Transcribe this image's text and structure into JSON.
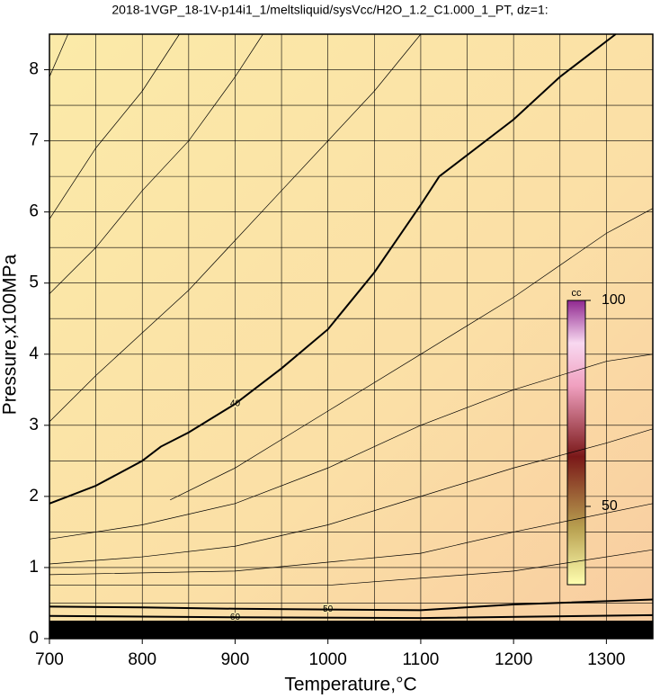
{
  "chart_data": {
    "type": "contour",
    "title": "2018-1VGP_18-1V-p14i1_1/meltsliquid/sysVcc/H2O_1.2_C1.000_1_PT, dz=1:",
    "x_label": "Temperature,°C",
    "y_label": "Pressure,x100MPa",
    "xlim": [
      700,
      1350
    ],
    "ylim": [
      0,
      8.5
    ],
    "xticks": [
      700,
      800,
      900,
      1000,
      1100,
      1200,
      1300
    ],
    "yticks": [
      0,
      1,
      2,
      3,
      4,
      5,
      6,
      7,
      8
    ],
    "xgrid": [
      700,
      750,
      800,
      850,
      900,
      950,
      1000,
      1050,
      1100,
      1150,
      1200,
      1250,
      1300,
      1350
    ],
    "ygrid": [
      0,
      0.5,
      1,
      1.5,
      2,
      2.5,
      3,
      3.5,
      4,
      4.5,
      5,
      5.5,
      6,
      6.5,
      7,
      7.5,
      8,
      8.5
    ],
    "contours": [
      {
        "level": 40,
        "labeled": true,
        "x": [
          700,
          720,
          750,
          800,
          820,
          850,
          900,
          950,
          1000,
          1050,
          1100,
          1120,
          1200,
          1250,
          1310
        ],
        "y": [
          1.9,
          2.0,
          2.15,
          2.5,
          2.7,
          2.9,
          3.3,
          3.8,
          4.35,
          5.15,
          6.1,
          6.5,
          7.3,
          7.9,
          8.5
        ]
      },
      {
        "level": 50,
        "labeled": true,
        "x": [
          700,
          800,
          900,
          1000,
          1100,
          1200,
          1350
        ],
        "y": [
          0.45,
          0.44,
          0.42,
          0.41,
          0.4,
          0.48,
          0.55
        ]
      },
      {
        "level": 60,
        "labeled": true,
        "x": [
          700,
          900,
          1100,
          1350
        ],
        "y": [
          0.32,
          0.3,
          0.29,
          0.33
        ]
      },
      {
        "level": 15,
        "labeled": false,
        "x": [
          700,
          720
        ],
        "y": [
          7.9,
          8.5
        ]
      },
      {
        "level": 20,
        "labeled": false,
        "x": [
          700,
          750,
          800,
          840
        ],
        "y": [
          5.9,
          6.9,
          7.7,
          8.5
        ]
      },
      {
        "level": 25,
        "labeled": false,
        "x": [
          700,
          750,
          800,
          850,
          900,
          930
        ],
        "y": [
          4.85,
          5.5,
          6.3,
          7.0,
          7.9,
          8.5
        ]
      },
      {
        "level": 30,
        "labeled": false,
        "x": [
          700,
          750,
          800,
          850,
          900,
          950,
          1000,
          1050,
          1100
        ],
        "y": [
          3.05,
          3.7,
          4.3,
          4.9,
          5.6,
          6.3,
          7.0,
          7.7,
          8.5
        ]
      },
      {
        "level": 41,
        "labeled": false,
        "x": [
          830,
          900,
          1000,
          1100,
          1200,
          1300,
          1350
        ],
        "y": [
          1.95,
          2.4,
          3.2,
          4.0,
          4.8,
          5.7,
          6.05
        ]
      },
      {
        "level": 42,
        "labeled": false,
        "x": [
          700,
          800,
          900,
          1000,
          1100,
          1200,
          1300,
          1350
        ],
        "y": [
          1.4,
          1.6,
          1.9,
          2.4,
          3.0,
          3.5,
          3.9,
          4.0
        ]
      },
      {
        "level": 43,
        "labeled": false,
        "x": [
          700,
          800,
          900,
          1000,
          1100,
          1200,
          1300,
          1350
        ],
        "y": [
          1.05,
          1.15,
          1.3,
          1.6,
          2.0,
          2.4,
          2.75,
          2.95
        ]
      },
      {
        "level": 44,
        "labeled": false,
        "x": [
          700,
          900,
          1100,
          1200,
          1350
        ],
        "y": [
          0.9,
          0.95,
          1.2,
          1.5,
          1.9
        ]
      },
      {
        "level": 45,
        "labeled": false,
        "x": [
          700,
          1000,
          1200,
          1350
        ],
        "y": [
          0.75,
          0.75,
          0.95,
          1.25
        ]
      }
    ],
    "colorbar": {
      "label": "cc",
      "clim": [
        31,
        100
      ],
      "ticks": [
        50,
        100
      ]
    }
  }
}
